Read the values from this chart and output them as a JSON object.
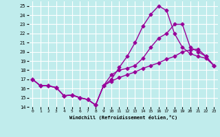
{
  "bg_color": "#c0ecec",
  "line_color": "#990099",
  "grid_color": "#ffffff",
  "xlabel": "Windchill (Refroidissement éolien,°C)",
  "xlim": [
    -0.5,
    23.5
  ],
  "ylim": [
    14,
    25.5
  ],
  "yticks": [
    14,
    15,
    16,
    17,
    18,
    19,
    20,
    21,
    22,
    23,
    24,
    25
  ],
  "xticks": [
    0,
    1,
    2,
    3,
    4,
    5,
    6,
    7,
    8,
    9,
    10,
    11,
    12,
    13,
    14,
    15,
    16,
    17,
    18,
    19,
    20,
    21,
    22,
    23
  ],
  "line1_x": [
    0,
    1,
    2,
    3,
    4,
    5,
    6,
    7,
    8,
    9,
    10,
    11,
    12,
    13,
    14,
    15,
    16,
    17,
    18,
    19,
    20,
    21,
    22,
    23
  ],
  "line1_y": [
    17.0,
    16.3,
    16.3,
    16.1,
    15.2,
    15.3,
    15.0,
    14.8,
    14.2,
    16.3,
    17.5,
    18.0,
    18.2,
    18.5,
    19.3,
    20.5,
    21.5,
    22.0,
    23.0,
    23.0,
    20.5,
    20.0,
    19.5,
    18.5
  ],
  "line2_x": [
    0,
    1,
    2,
    3,
    4,
    5,
    6,
    7,
    8,
    9,
    10,
    11,
    12,
    13,
    14,
    15,
    16,
    17,
    18,
    19,
    20,
    21,
    22,
    23
  ],
  "line2_y": [
    17.0,
    16.3,
    16.3,
    16.1,
    15.2,
    15.3,
    15.0,
    14.8,
    14.2,
    16.3,
    17.0,
    18.3,
    19.5,
    21.0,
    22.8,
    24.1,
    25.0,
    24.5,
    22.0,
    20.5,
    19.8,
    19.5,
    19.3,
    18.5
  ],
  "line3_x": [
    0,
    1,
    2,
    3,
    4,
    5,
    6,
    7,
    8,
    9,
    10,
    11,
    12,
    13,
    14,
    15,
    16,
    17,
    18,
    19,
    20,
    21,
    22,
    23
  ],
  "line3_y": [
    17.0,
    16.3,
    16.3,
    16.1,
    15.2,
    15.3,
    15.0,
    14.8,
    14.2,
    16.3,
    16.8,
    17.2,
    17.5,
    17.8,
    18.2,
    18.5,
    18.8,
    19.2,
    19.5,
    20.0,
    20.2,
    20.3,
    19.5,
    18.5
  ],
  "marker": "D",
  "markersize": 2.5,
  "linewidth": 1.0
}
